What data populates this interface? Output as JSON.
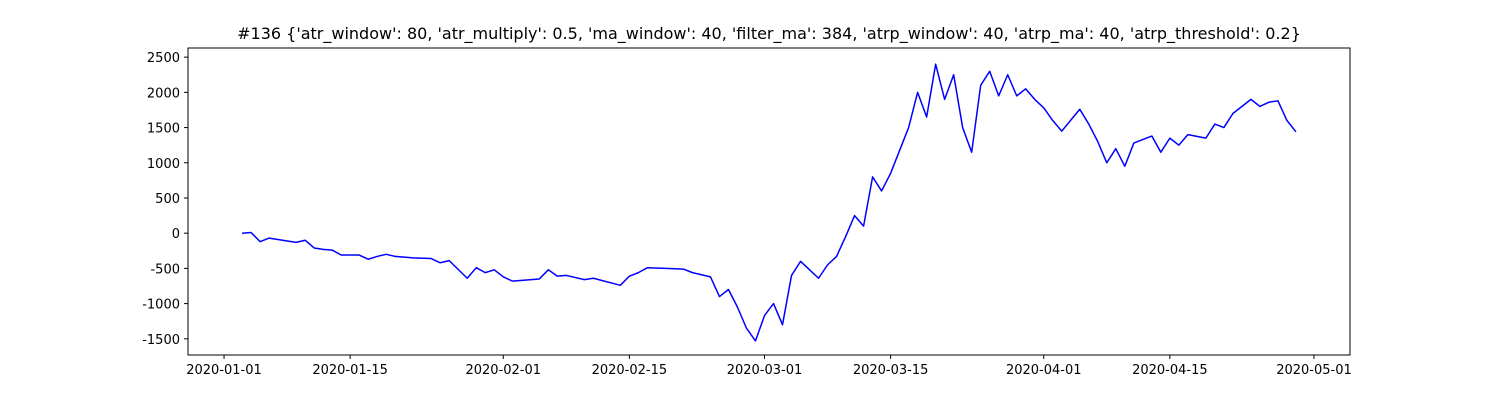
{
  "chart_data": {
    "type": "line",
    "title": "#136 {'atr_window': 80, 'atr_multiply': 0.5, 'ma_window': 40, 'filter_ma': 384, 'atrp_window': 40, 'atrp_ma': 40, 'atrp_threshold': 0.2}",
    "x": [
      "2020-01-03",
      "2020-01-04",
      "2020-01-05",
      "2020-01-06",
      "2020-01-09",
      "2020-01-10",
      "2020-01-11",
      "2020-01-12",
      "2020-01-13",
      "2020-01-14",
      "2020-01-16",
      "2020-01-17",
      "2020-01-18",
      "2020-01-19",
      "2020-01-20",
      "2020-01-22",
      "2020-01-24",
      "2020-01-25",
      "2020-01-26",
      "2020-01-28",
      "2020-01-29",
      "2020-01-30",
      "2020-01-31",
      "2020-02-01",
      "2020-02-02",
      "2020-02-05",
      "2020-02-06",
      "2020-02-07",
      "2020-02-08",
      "2020-02-10",
      "2020-02-11",
      "2020-02-14",
      "2020-02-15",
      "2020-02-16",
      "2020-02-17",
      "2020-02-19",
      "2020-02-21",
      "2020-02-22",
      "2020-02-24",
      "2020-02-25",
      "2020-02-26",
      "2020-02-27",
      "2020-02-28",
      "2020-02-29",
      "2020-03-01",
      "2020-03-02",
      "2020-03-03",
      "2020-03-04",
      "2020-03-05",
      "2020-03-06",
      "2020-03-07",
      "2020-03-08",
      "2020-03-09",
      "2020-03-10",
      "2020-03-11",
      "2020-03-12",
      "2020-03-13",
      "2020-03-14",
      "2020-03-15",
      "2020-03-17",
      "2020-03-18",
      "2020-03-19",
      "2020-03-20",
      "2020-03-21",
      "2020-03-22",
      "2020-03-23",
      "2020-03-24",
      "2020-03-25",
      "2020-03-26",
      "2020-03-27",
      "2020-03-28",
      "2020-03-29",
      "2020-03-30",
      "2020-03-31",
      "2020-04-01",
      "2020-04-02",
      "2020-04-03",
      "2020-04-05",
      "2020-04-06",
      "2020-04-07",
      "2020-04-08",
      "2020-04-09",
      "2020-04-10",
      "2020-04-11",
      "2020-04-13",
      "2020-04-14",
      "2020-04-15",
      "2020-04-16",
      "2020-04-17",
      "2020-04-19",
      "2020-04-20",
      "2020-04-21",
      "2020-04-22",
      "2020-04-24",
      "2020-04-25",
      "2020-04-26",
      "2020-04-27",
      "2020-04-28",
      "2020-04-29"
    ],
    "series": [
      {
        "color": "#0000ff",
        "values": [
          0,
          10,
          -120,
          -70,
          -130,
          -100,
          -210,
          -230,
          -240,
          -310,
          -310,
          -370,
          -330,
          -300,
          -330,
          -350,
          -360,
          -420,
          -390,
          -640,
          -490,
          -560,
          -520,
          -620,
          -680,
          -650,
          -520,
          -610,
          -600,
          -660,
          -640,
          -740,
          -610,
          -560,
          -490,
          -500,
          -510,
          -560,
          -620,
          -900,
          -800,
          -1050,
          -1350,
          -1530,
          -1170,
          -1000,
          -1300,
          -600,
          -400,
          -520,
          -640,
          -450,
          -330,
          -50,
          250,
          100,
          800,
          600,
          850,
          1500,
          2000,
          1650,
          2400,
          1900,
          2250,
          1500,
          1150,
          2100,
          2300,
          1950,
          2250,
          1950,
          2050,
          1900,
          1780,
          1600,
          1450,
          1760,
          1550,
          1300,
          1000,
          1200,
          950,
          1280,
          1380,
          1150,
          1350,
          1250,
          1400,
          1350,
          1550,
          1500,
          1700,
          1900,
          1800,
          1860,
          1880,
          1600,
          1440
        ]
      }
    ],
    "xlim": [
      "2019-12-28",
      "2020-05-05"
    ],
    "xticks": [
      "2020-01-01",
      "2020-01-15",
      "2020-02-01",
      "2020-02-15",
      "2020-03-01",
      "2020-03-15",
      "2020-04-01",
      "2020-04-15",
      "2020-05-01"
    ],
    "ylim": [
      -1730,
      2630
    ],
    "yticks": [
      -1500,
      -1000,
      -500,
      0,
      500,
      1000,
      1500,
      2000,
      2500
    ]
  }
}
